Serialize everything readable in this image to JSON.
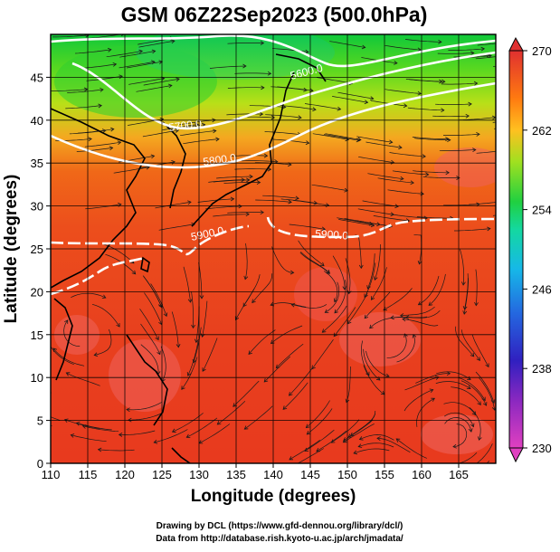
{
  "title": "GSM 06Z22Sep2023 (500.0hPa)",
  "x_axis": {
    "label": "Longitude (degrees)",
    "ticks": [
      "110",
      "115",
      "120",
      "125",
      "130",
      "135",
      "140",
      "145",
      "150",
      "155",
      "160",
      "165"
    ]
  },
  "y_axis": {
    "label": "Latitude  (degrees)",
    "ticks": [
      "0",
      "5",
      "10",
      "15",
      "20",
      "25",
      "30",
      "35",
      "40",
      "45"
    ]
  },
  "colorbar": {
    "ticks": [
      "230",
      "238",
      "246",
      "254",
      "262",
      "270"
    ],
    "colors": [
      "#e040c0",
      "#3020c0",
      "#2a7fe0",
      "#16d0d0",
      "#20d040",
      "#a0e020",
      "#ffc020",
      "#ff7a10",
      "#f04030",
      "#e03030"
    ]
  },
  "contours": [
    {
      "label": "5600.0"
    },
    {
      "label": "5700.0"
    },
    {
      "label": "5800.0"
    },
    {
      "label": "5900.0"
    },
    {
      "label": "5900.0"
    }
  ],
  "credits": {
    "line1": "Drawing by DCL (https://www.gfd-dennou.org/library/dcl/)",
    "line2": "Data from http://database.rish.kyoto-u.ac.jp/arch/jmadata/"
  }
}
